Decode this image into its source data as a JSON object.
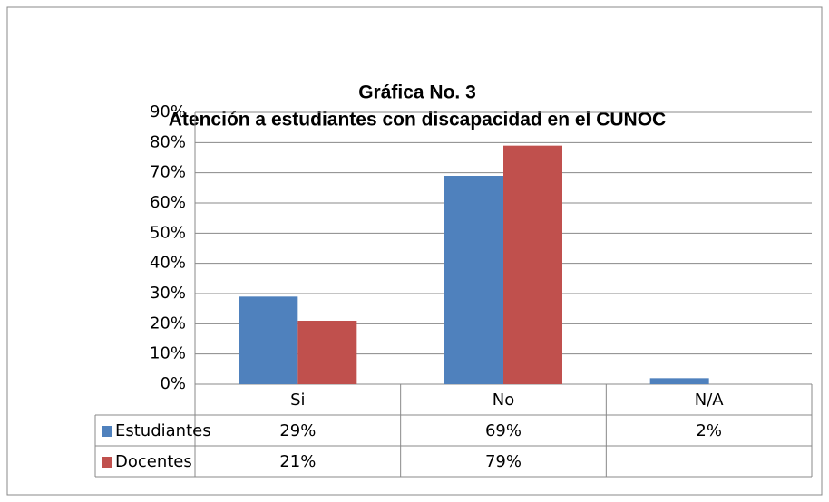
{
  "chart_data": {
    "type": "bar",
    "title": "Gráfica No. 3",
    "subtitle": "Atención a estudiantes con discapacidad en el CUNOC",
    "categories": [
      "Si",
      "No",
      "N/A"
    ],
    "series": [
      {
        "name": "Estudiantes",
        "color": "#4f81bd",
        "values": [
          29,
          69,
          2
        ],
        "value_labels": [
          "29%",
          "69%",
          "2%"
        ]
      },
      {
        "name": "Docentes",
        "color": "#c0504d",
        "values": [
          21,
          79,
          null
        ],
        "value_labels": [
          "21%",
          "79%",
          null
        ]
      }
    ],
    "ylim": [
      0,
      90
    ],
    "yticks": [
      {
        "value": 0,
        "label": "0%"
      },
      {
        "value": 10,
        "label": "10%"
      },
      {
        "value": 20,
        "label": "20%"
      },
      {
        "value": 30,
        "label": "30%"
      },
      {
        "value": 40,
        "label": "40%"
      },
      {
        "value": 50,
        "label": "50%"
      },
      {
        "value": 60,
        "label": "60%"
      },
      {
        "value": 70,
        "label": "70%"
      },
      {
        "value": 80,
        "label": "80%"
      },
      {
        "value": 90,
        "label": "90%"
      }
    ],
    "grid": true,
    "data_table": true
  }
}
